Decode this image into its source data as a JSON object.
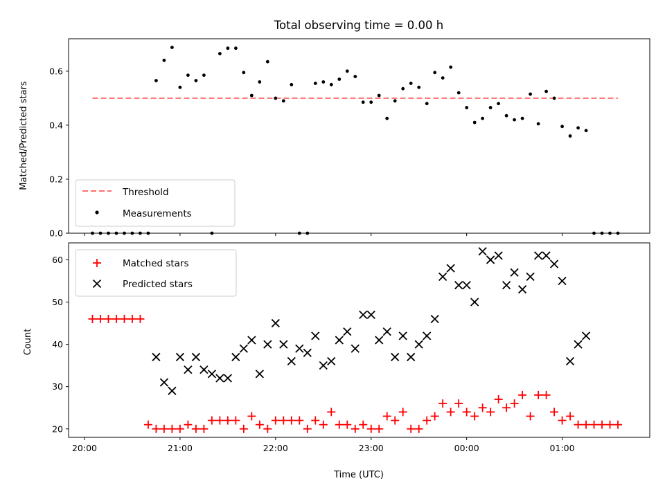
{
  "chart_data": [
    {
      "type": "scatter",
      "title": "Total observing time = 0.00 h",
      "ylabel": "Matched/Predicted stars",
      "xlabel": "",
      "ylim": [
        0,
        0.72
      ],
      "yticks": [
        "0.0",
        "0.2",
        "0.4",
        "0.6"
      ],
      "ytick_values": [
        0,
        0.2,
        0.4,
        0.6
      ],
      "legend": {
        "position": "lower-left",
        "entries": [
          "Threshold",
          "Measurements"
        ]
      },
      "threshold": {
        "name": "Threshold",
        "value": 0.5,
        "x_range": [
          "20:05",
          "01:35"
        ],
        "color": "#ff6f6f",
        "style": "dashed"
      },
      "series": [
        {
          "name": "Measurements",
          "color": "#000000",
          "marker": "dot",
          "x": [
            "20:05",
            "20:10",
            "20:15",
            "20:20",
            "20:25",
            "20:30",
            "20:35",
            "20:40",
            "20:45",
            "20:50",
            "20:55",
            "21:00",
            "21:05",
            "21:10",
            "21:15",
            "21:20",
            "21:25",
            "21:30",
            "21:35",
            "21:40",
            "21:45",
            "21:50",
            "21:55",
            "22:00",
            "22:05",
            "22:10",
            "22:15",
            "22:20",
            "22:25",
            "22:30",
            "22:35",
            "22:40",
            "22:45",
            "22:50",
            "22:55",
            "23:00",
            "23:05",
            "23:10",
            "23:15",
            "23:20",
            "23:25",
            "23:30",
            "23:35",
            "23:40",
            "23:45",
            "23:50",
            "23:55",
            "00:00",
            "00:05",
            "00:10",
            "00:15",
            "00:20",
            "00:25",
            "00:30",
            "00:35",
            "00:40",
            "00:45",
            "00:50",
            "00:55",
            "01:00",
            "01:05",
            "01:10",
            "01:15",
            "01:20",
            "01:25",
            "01:30",
            "01:35"
          ],
          "y": [
            0,
            0,
            0,
            0,
            0,
            0,
            0,
            0,
            0.565,
            0.64,
            0.688,
            0.54,
            0.585,
            0.565,
            0.585,
            0,
            0.665,
            0.685,
            0.685,
            0.595,
            0.51,
            0.56,
            0.635,
            0.5,
            0.49,
            0.55,
            0,
            0,
            0.555,
            0.56,
            0.55,
            0.57,
            0.6,
            0.58,
            0.485,
            0.485,
            0.51,
            0.425,
            0.49,
            0.535,
            0.555,
            0.54,
            0.48,
            0.595,
            0.575,
            0.615,
            0.52,
            0.465,
            0.41,
            0.425,
            0.465,
            0.48,
            0.435,
            0.42,
            0.425,
            0.515,
            0.405,
            0.525,
            0.5,
            0.395,
            0.36,
            0.39,
            0.38,
            0,
            0,
            0,
            0
          ]
        }
      ]
    },
    {
      "type": "scatter",
      "title": "",
      "xlabel": "Time (UTC)",
      "ylabel": "Count",
      "ylim": [
        18,
        64
      ],
      "yticks": [
        "20",
        "30",
        "40",
        "50",
        "60"
      ],
      "ytick_values": [
        20,
        30,
        40,
        50,
        60
      ],
      "xlim": [
        "19:50",
        "01:55"
      ],
      "xticks": [
        "20:00",
        "21:00",
        "22:00",
        "23:00",
        "00:00",
        "01:00"
      ],
      "legend": {
        "position": "top-left",
        "entries": [
          "Matched stars",
          "Predicted stars"
        ]
      },
      "series": [
        {
          "name": "Matched stars",
          "color": "#ff0000",
          "marker": "plus",
          "x": [
            "20:05",
            "20:10",
            "20:15",
            "20:20",
            "20:25",
            "20:30",
            "20:35",
            "20:40",
            "20:45",
            "20:50",
            "20:55",
            "21:00",
            "21:05",
            "21:10",
            "21:15",
            "21:20",
            "21:25",
            "21:30",
            "21:35",
            "21:40",
            "21:45",
            "21:50",
            "21:55",
            "22:00",
            "22:05",
            "22:10",
            "22:15",
            "22:20",
            "22:25",
            "22:30",
            "22:35",
            "22:40",
            "22:45",
            "22:50",
            "22:55",
            "23:00",
            "23:05",
            "23:10",
            "23:15",
            "23:20",
            "23:25",
            "23:30",
            "23:35",
            "23:40",
            "23:45",
            "23:50",
            "23:55",
            "00:00",
            "00:05",
            "00:10",
            "00:15",
            "00:20",
            "00:25",
            "00:30",
            "00:35",
            "00:40",
            "00:45",
            "00:50",
            "00:55",
            "01:00",
            "01:05",
            "01:10",
            "01:15",
            "01:20",
            "01:25",
            "01:30",
            "01:35"
          ],
          "y": [
            46,
            46,
            46,
            46,
            46,
            46,
            46,
            21,
            20,
            20,
            20,
            20,
            21,
            20,
            20,
            22,
            22,
            22,
            22,
            20,
            23,
            21,
            20,
            22,
            22,
            22,
            22,
            20,
            22,
            21,
            24,
            21,
            21,
            20,
            21,
            20,
            20,
            23,
            22,
            24,
            20,
            20,
            22,
            23,
            26,
            24,
            26,
            24,
            23,
            25,
            24,
            27,
            25,
            26,
            28,
            23,
            28,
            28,
            24,
            22,
            23,
            21,
            21,
            21,
            21,
            21,
            21
          ]
        },
        {
          "name": "Predicted stars",
          "color": "#000000",
          "marker": "x",
          "x": [
            "20:45",
            "20:50",
            "20:55",
            "21:00",
            "21:05",
            "21:10",
            "21:15",
            "21:20",
            "21:25",
            "21:30",
            "21:35",
            "21:40",
            "21:45",
            "21:50",
            "21:55",
            "22:00",
            "22:05",
            "22:10",
            "22:15",
            "22:20",
            "22:25",
            "22:30",
            "22:35",
            "22:40",
            "22:45",
            "22:50",
            "22:55",
            "23:00",
            "23:05",
            "23:10",
            "23:15",
            "23:20",
            "23:25",
            "23:30",
            "23:35",
            "23:40",
            "23:45",
            "23:50",
            "23:55",
            "00:00",
            "00:05",
            "00:10",
            "00:15",
            "00:20",
            "00:25",
            "00:30",
            "00:35",
            "00:40",
            "00:45",
            "00:50",
            "00:55",
            "01:00",
            "01:05",
            "01:10",
            "01:15"
          ],
          "y": [
            37,
            31,
            29,
            37,
            34,
            37,
            34,
            33,
            32,
            32,
            37,
            39,
            41,
            33,
            40,
            45,
            40,
            36,
            39,
            38,
            42,
            35,
            36,
            41,
            43,
            39,
            47,
            47,
            41,
            43,
            37,
            42,
            37,
            40,
            42,
            46,
            56,
            58,
            54,
            54,
            50,
            62,
            60,
            61,
            54,
            57,
            53,
            56,
            61,
            61,
            59,
            55,
            36,
            40,
            42
          ]
        }
      ]
    }
  ]
}
